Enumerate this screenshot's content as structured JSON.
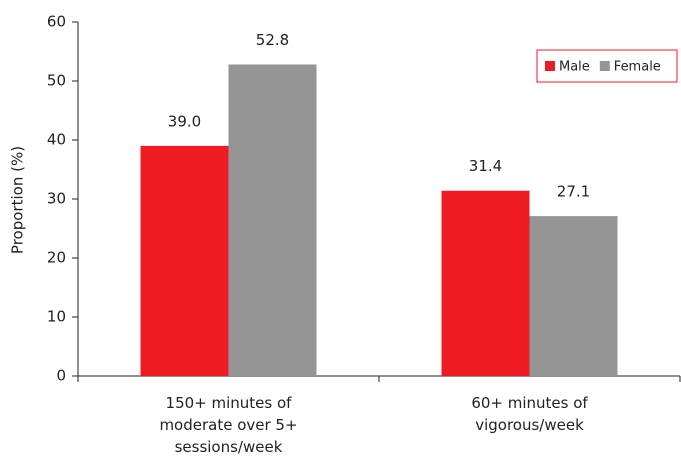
{
  "chart_data": {
    "type": "bar",
    "y_label": "Proportion (%)",
    "categories": [
      "150+ minutes of moderate over 5+ sessions/week",
      "60+ minutes of vigorous/week"
    ],
    "series": [
      {
        "name": "Male",
        "color": "#ed1c24",
        "values": [
          39.0,
          31.4
        ],
        "value_labels": [
          "39.0",
          "31.4"
        ]
      },
      {
        "name": "Female",
        "color": "#959595",
        "values": [
          52.8,
          27.1
        ],
        "value_labels": [
          "52.8",
          "27.1"
        ]
      }
    ],
    "ylim": [
      0,
      60
    ],
    "yticks": [
      0,
      10,
      20,
      30,
      40,
      50,
      60
    ],
    "legend": "upper right"
  }
}
